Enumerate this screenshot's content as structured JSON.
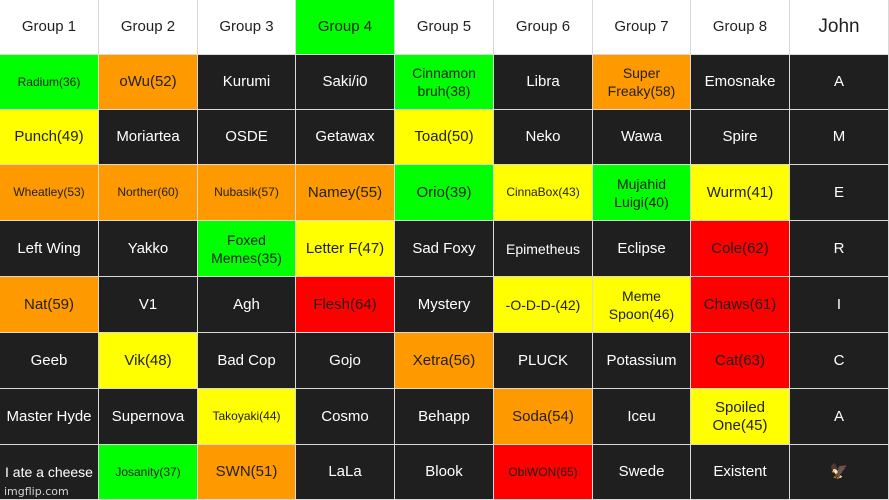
{
  "colors": {
    "dark": "#1f1f1f",
    "white": "#ffffff",
    "green": "#00ff00",
    "orange": "#ff9900",
    "yellow": "#ffff00",
    "red": "#ff0000"
  },
  "rows": [
    [
      {
        "text": "Group 1",
        "color": "white"
      },
      {
        "text": "Group 2",
        "color": "white"
      },
      {
        "text": "Group 3",
        "color": "white"
      },
      {
        "text": "Group 4",
        "color": "green"
      },
      {
        "text": "Group 5",
        "color": "white"
      },
      {
        "text": "Group 6",
        "color": "white"
      },
      {
        "text": "Group 7",
        "color": "white"
      },
      {
        "text": "Group 8",
        "color": "white"
      },
      {
        "text": "John",
        "color": "white",
        "size": "lg"
      }
    ],
    [
      {
        "text": "Radium(36)",
        "color": "green",
        "size": "sm"
      },
      {
        "text": "oWu(52)",
        "color": "orange"
      },
      {
        "text": "Kurumi",
        "color": "dark"
      },
      {
        "text": "Saki/i0",
        "color": "dark"
      },
      {
        "text": "Cinnamon bruh(38)",
        "color": "green",
        "size": "md"
      },
      {
        "text": "Libra",
        "color": "dark"
      },
      {
        "text": "Super Freaky(58)",
        "color": "orange",
        "size": "md"
      },
      {
        "text": "Emosnake",
        "color": "dark"
      },
      {
        "text": "A",
        "color": "dark"
      }
    ],
    [
      {
        "text": "Punch(49)",
        "color": "yellow"
      },
      {
        "text": "Moriartea",
        "color": "dark"
      },
      {
        "text": "OSDE",
        "color": "dark"
      },
      {
        "text": "Getawax",
        "color": "dark"
      },
      {
        "text": "Toad(50)",
        "color": "yellow"
      },
      {
        "text": "Neko",
        "color": "dark"
      },
      {
        "text": "Wawa",
        "color": "dark"
      },
      {
        "text": "Spire",
        "color": "dark"
      },
      {
        "text": "M",
        "color": "dark"
      }
    ],
    [
      {
        "text": "Wheatley(53)",
        "color": "orange",
        "size": "sm"
      },
      {
        "text": "Norther(60)",
        "color": "orange",
        "size": "sm"
      },
      {
        "text": "Nubasik(57)",
        "color": "orange",
        "size": "sm"
      },
      {
        "text": "Namey(55)",
        "color": "orange"
      },
      {
        "text": "Orio(39)",
        "color": "green"
      },
      {
        "text": "CinnaBox(43)",
        "color": "yellow",
        "size": "sm"
      },
      {
        "text": "Mujahid Luigi(40)",
        "color": "green",
        "size": "md"
      },
      {
        "text": "Wurm(41)",
        "color": "yellow"
      },
      {
        "text": "E",
        "color": "dark"
      }
    ],
    [
      {
        "text": "Left Wing",
        "color": "dark"
      },
      {
        "text": "Yakko",
        "color": "dark"
      },
      {
        "text": "Foxed Memes(35)",
        "color": "green",
        "size": "md"
      },
      {
        "text": "Letter F(47)",
        "color": "yellow"
      },
      {
        "text": "Sad Foxy",
        "color": "dark"
      },
      {
        "text": "Epimetheus",
        "color": "dark",
        "size": "md"
      },
      {
        "text": "Eclipse",
        "color": "dark"
      },
      {
        "text": "Cole(62)",
        "color": "red"
      },
      {
        "text": "R",
        "color": "dark"
      }
    ],
    [
      {
        "text": "Nat(59)",
        "color": "orange"
      },
      {
        "text": "V1",
        "color": "dark"
      },
      {
        "text": "Agh",
        "color": "dark"
      },
      {
        "text": "Flesh(64)",
        "color": "red"
      },
      {
        "text": "Mystery",
        "color": "dark"
      },
      {
        "text": "-O-D-D-(42)",
        "color": "yellow",
        "size": "md"
      },
      {
        "text": "Meme Spoon(46)",
        "color": "yellow",
        "size": "md"
      },
      {
        "text": "Chaws(61)",
        "color": "red"
      },
      {
        "text": "I",
        "color": "dark"
      }
    ],
    [
      {
        "text": "Geeb",
        "color": "dark"
      },
      {
        "text": "Vik(48)",
        "color": "yellow"
      },
      {
        "text": "Bad Cop",
        "color": "dark"
      },
      {
        "text": "Gojo",
        "color": "dark"
      },
      {
        "text": "Xetra(56)",
        "color": "orange"
      },
      {
        "text": "PLUCK",
        "color": "dark"
      },
      {
        "text": "Potassium",
        "color": "dark"
      },
      {
        "text": "Cat(63)",
        "color": "red"
      },
      {
        "text": "C",
        "color": "dark"
      }
    ],
    [
      {
        "text": "Master Hyde",
        "color": "dark"
      },
      {
        "text": "Supernova",
        "color": "dark"
      },
      {
        "text": "Takoyaki(44)",
        "color": "yellow",
        "size": "sm"
      },
      {
        "text": "Cosmo",
        "color": "dark"
      },
      {
        "text": "Behapp",
        "color": "dark"
      },
      {
        "text": "Soda(54)",
        "color": "orange"
      },
      {
        "text": "Iceu",
        "color": "dark"
      },
      {
        "text": "Spoiled One(45)",
        "color": "yellow"
      },
      {
        "text": "A",
        "color": "dark"
      }
    ],
    [
      {
        "text": "I ate a cheese",
        "color": "dark",
        "size": "md"
      },
      {
        "text": "Josanity(37)",
        "color": "green",
        "size": "sm"
      },
      {
        "text": "SWN(51)",
        "color": "orange"
      },
      {
        "text": "LaLa",
        "color": "dark"
      },
      {
        "text": "Blook",
        "color": "dark"
      },
      {
        "text": "ObiWON(65)",
        "color": "red",
        "size": "sm"
      },
      {
        "text": "Swede",
        "color": "dark"
      },
      {
        "text": "Existent",
        "color": "dark"
      },
      {
        "text": "🦅",
        "color": "dark"
      }
    ]
  ],
  "watermark": "imgflip.com"
}
